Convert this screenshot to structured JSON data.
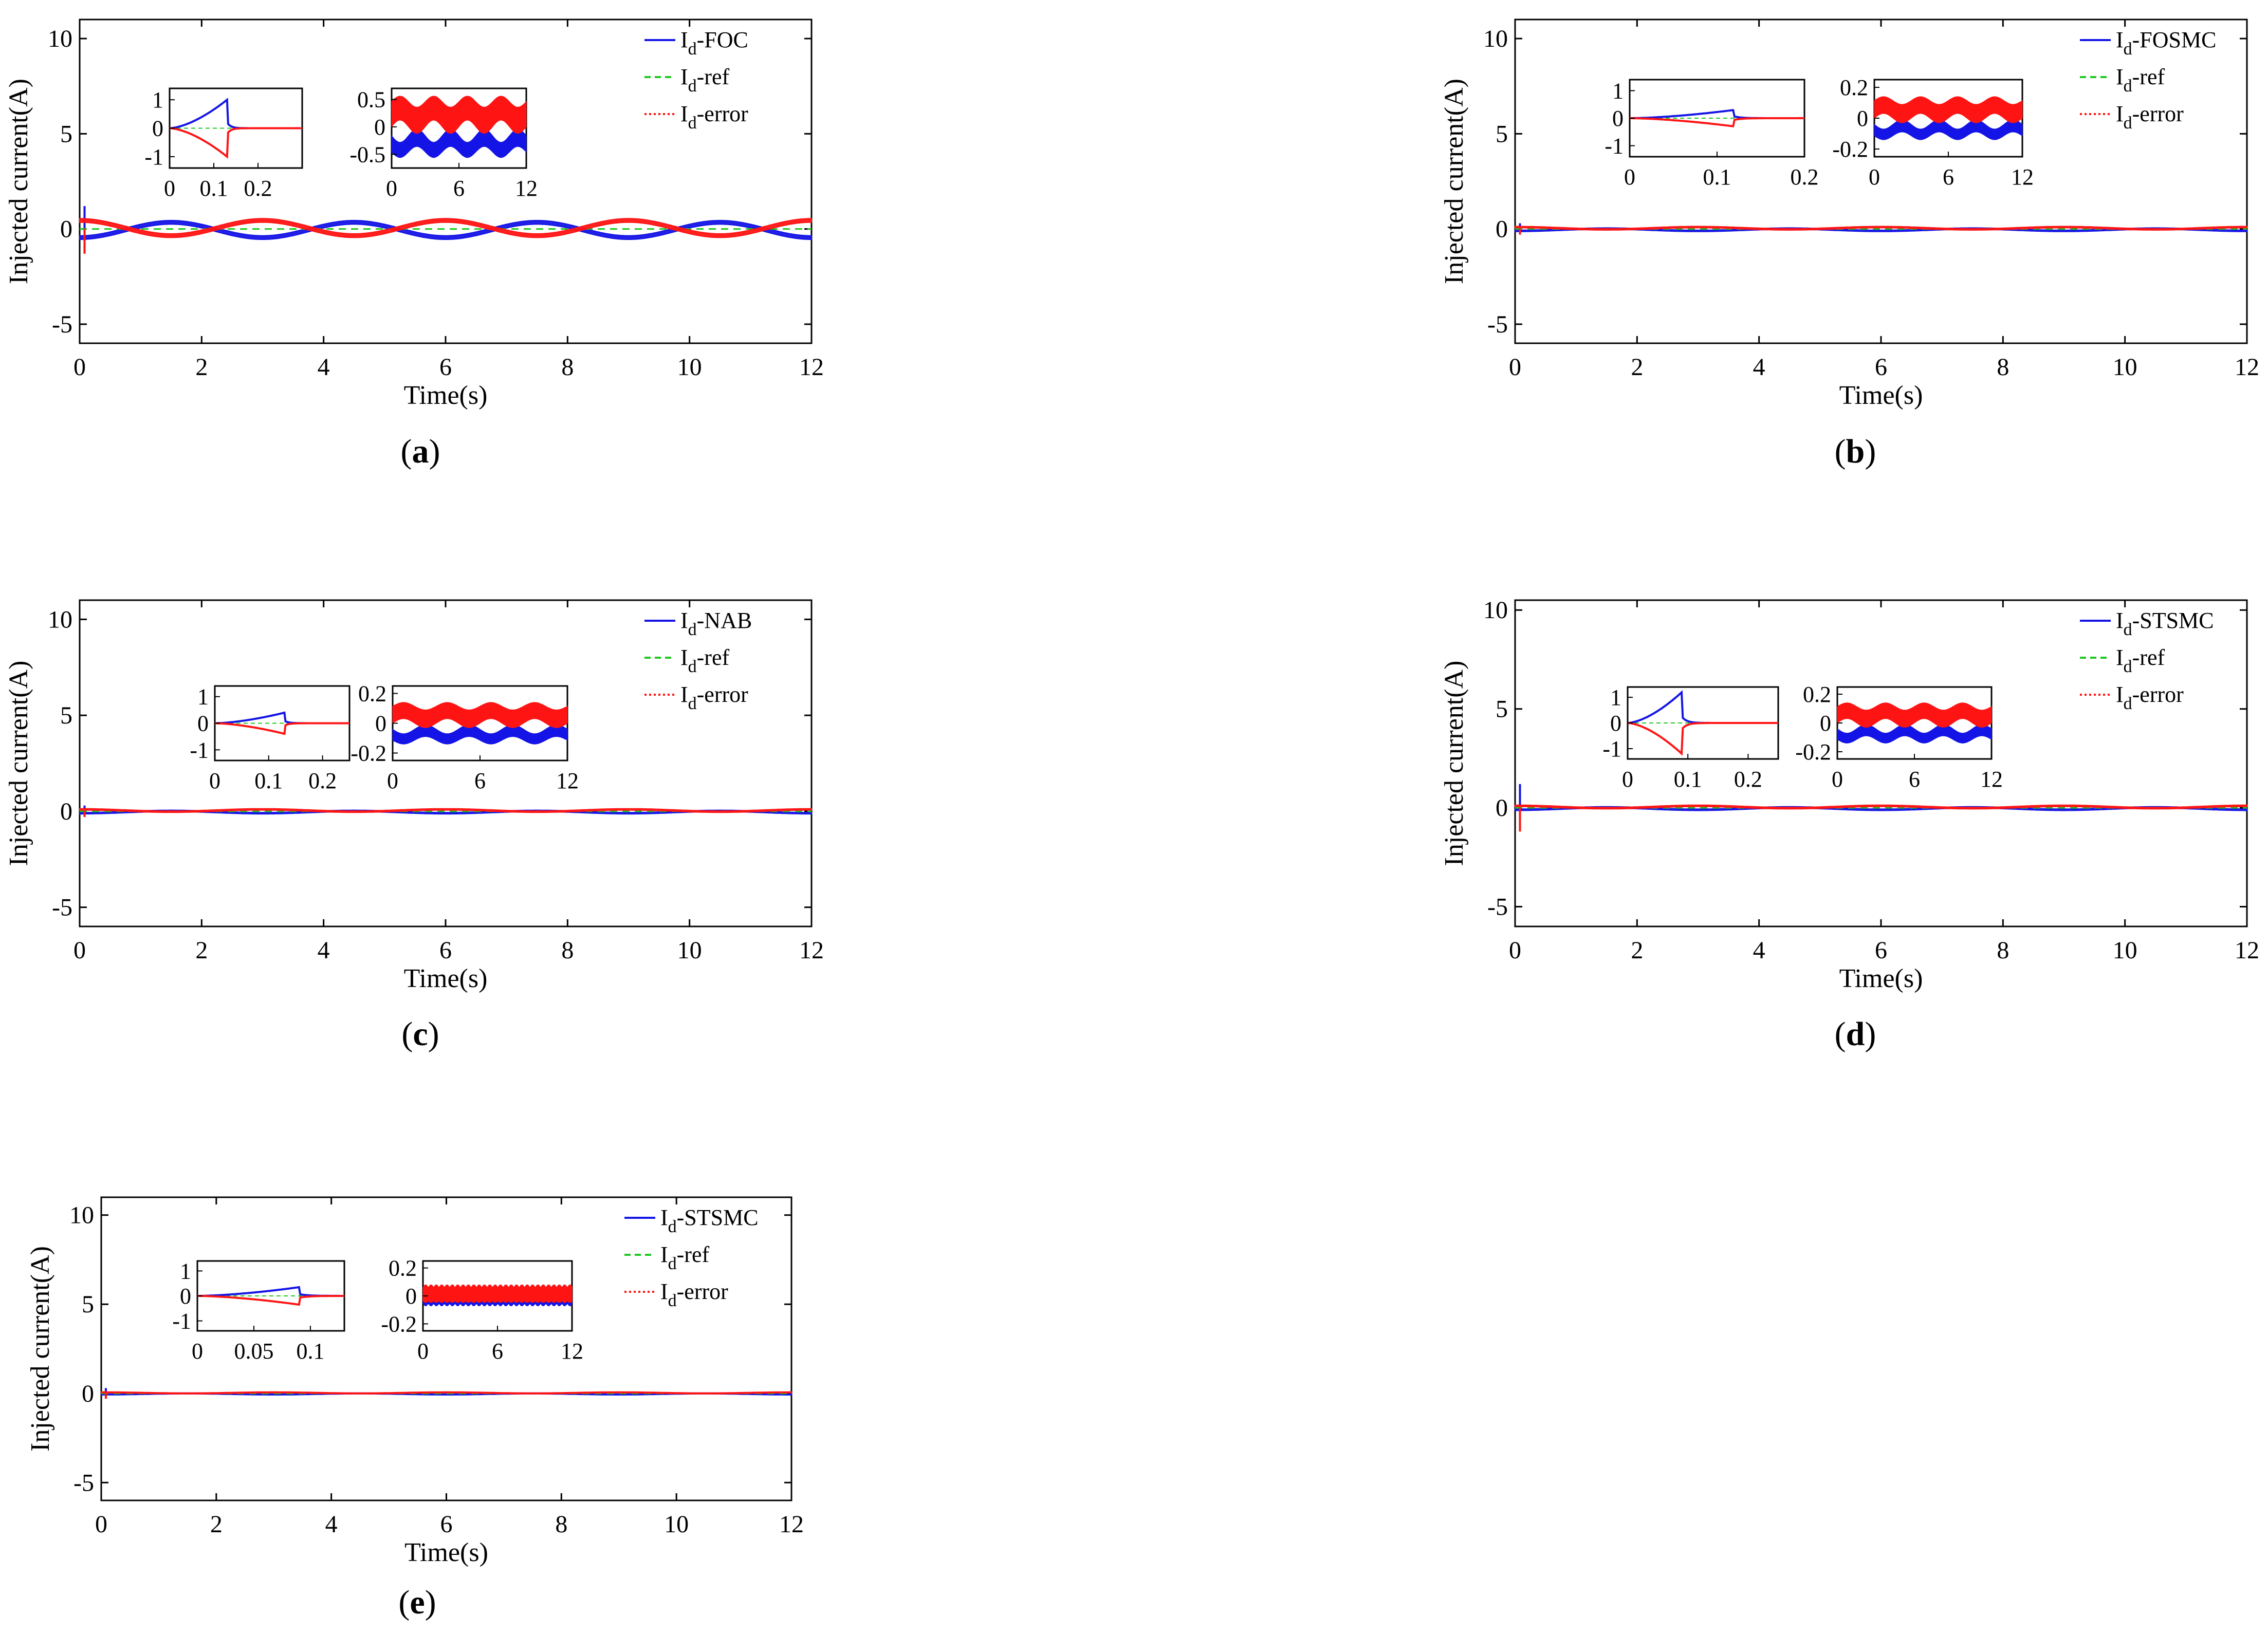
{
  "colors": {
    "foc_blue": "#1414e6",
    "ref_green": "#1ec81e",
    "error_red": "#ff1414",
    "axis": "#000000",
    "background": "#ffffff"
  },
  "chart_data": [
    {
      "id": "a",
      "label": "a",
      "type": "line",
      "xlabel": "Time(s)",
      "ylabel": "Injected current(A)",
      "xlim": [
        0,
        12
      ],
      "ylim": [
        -6,
        11
      ],
      "xticks": [
        "0",
        "2",
        "4",
        "6",
        "8",
        "10",
        "12"
      ],
      "yticks": [
        "10",
        "5",
        "0",
        "-5"
      ],
      "legend": [
        {
          "main": "I",
          "sub": "d",
          "suffix": "-FOC",
          "style": "solid",
          "color": "#1414e6"
        },
        {
          "main": "I",
          "sub": "d",
          "suffix": "-ref",
          "style": "dashed",
          "color": "#1ec81e"
        },
        {
          "main": "I",
          "sub": "d",
          "suffix": "-error",
          "style": "dotted",
          "color": "#ff1414"
        }
      ],
      "series": [
        {
          "name": "Id-FOC",
          "color": "#1414e6",
          "form": "sine",
          "amplitude": -0.4,
          "period": 3.0,
          "offset": -0.05,
          "band": 0.2,
          "spike": 1.2
        },
        {
          "name": "Id-ref",
          "color": "#1ec81e",
          "form": "const",
          "value": 0
        },
        {
          "name": "Id-error",
          "color": "#ff1414",
          "form": "sine",
          "amplitude": 0.4,
          "period": 3.0,
          "offset": 0.05,
          "band": 0.2,
          "spike": -1.3
        }
      ],
      "insets": [
        {
          "xlim": [
            0,
            0.3
          ],
          "ylim": [
            -1.4,
            1.4
          ],
          "xticks": [
            "0",
            "0.1",
            "0.2"
          ],
          "yticks": [
            "1",
            "0",
            "-1"
          ],
          "kind": "transient",
          "peak": 1.0,
          "peak_at": 0.13
        },
        {
          "xlim": [
            0,
            12
          ],
          "ylim": [
            -0.75,
            0.7
          ],
          "xticks": [
            "0",
            "6",
            "12"
          ],
          "yticks": [
            "0.5",
            "0",
            "-0.5"
          ],
          "kind": "band",
          "band_amp": 0.4,
          "band_period": 3.0
        }
      ]
    },
    {
      "id": "b",
      "label": "b",
      "type": "line",
      "xlabel": "Time(s)",
      "ylabel": "Injected current(A)",
      "xlim": [
        0,
        12
      ],
      "ylim": [
        -6,
        11
      ],
      "xticks": [
        "0",
        "2",
        "4",
        "6",
        "8",
        "10",
        "12"
      ],
      "yticks": [
        "10",
        "5",
        "0",
        "-5"
      ],
      "legend": [
        {
          "main": "I",
          "sub": "d",
          "suffix": "-FOSMC",
          "style": "solid",
          "color": "#1414e6"
        },
        {
          "main": "I",
          "sub": "d",
          "suffix": "-ref",
          "style": "dashed",
          "color": "#1ec81e"
        },
        {
          "main": "I",
          "sub": "d",
          "suffix": "-error",
          "style": "dotted",
          "color": "#ff1414"
        }
      ],
      "series": [
        {
          "name": "Id-FOSMC",
          "color": "#1414e6",
          "form": "sine",
          "amplitude": -0.06,
          "period": 3.0,
          "offset": -0.04,
          "band": 0.08,
          "spike": 0.3
        },
        {
          "name": "Id-ref",
          "color": "#1ec81e",
          "form": "const",
          "value": 0
        },
        {
          "name": "Id-error",
          "color": "#ff1414",
          "form": "sine",
          "amplitude": 0.06,
          "period": 3.0,
          "offset": 0.04,
          "band": 0.08,
          "spike": -0.3
        }
      ],
      "insets": [
        {
          "xlim": [
            0,
            0.2
          ],
          "ylim": [
            -1.4,
            1.4
          ],
          "xticks": [
            "0",
            "0.1",
            "0.2"
          ],
          "yticks": [
            "1",
            "0",
            "-1"
          ],
          "kind": "transient",
          "peak": 0.3,
          "peak_at": 0.12
        },
        {
          "xlim": [
            0,
            12
          ],
          "ylim": [
            -0.25,
            0.25
          ],
          "xticks": [
            "0",
            "6",
            "12"
          ],
          "yticks": [
            "0.2",
            "0",
            "-0.2"
          ],
          "kind": "band",
          "band_amp": 0.1,
          "band_period": 3.0
        }
      ]
    },
    {
      "id": "c",
      "label": "c",
      "type": "line",
      "xlabel": "Time(s)",
      "ylabel": "Injected current(A)",
      "xlim": [
        0,
        12
      ],
      "ylim": [
        -6,
        11
      ],
      "xticks": [
        "0",
        "2",
        "4",
        "6",
        "8",
        "10",
        "12"
      ],
      "yticks": [
        "10",
        "5",
        "0",
        "-5"
      ],
      "legend": [
        {
          "main": "I",
          "sub": "d",
          "suffix": "-NAB",
          "style": "solid",
          "color": "#1414e6"
        },
        {
          "main": "I",
          "sub": "d",
          "suffix": "-ref",
          "style": "dashed",
          "color": "#1ec81e"
        },
        {
          "main": "I",
          "sub": "d",
          "suffix": "-error",
          "style": "dotted",
          "color": "#ff1414"
        }
      ],
      "series": [
        {
          "name": "Id-NAB",
          "color": "#1414e6",
          "form": "sine",
          "amplitude": -0.06,
          "period": 3.0,
          "offset": -0.04,
          "band": 0.08,
          "spike": 0.3
        },
        {
          "name": "Id-ref",
          "color": "#1ec81e",
          "form": "const",
          "value": 0
        },
        {
          "name": "Id-error",
          "color": "#ff1414",
          "form": "sine",
          "amplitude": 0.06,
          "period": 3.0,
          "offset": 0.04,
          "band": 0.08,
          "spike": -0.3
        }
      ],
      "insets": [
        {
          "xlim": [
            0,
            0.25
          ],
          "ylim": [
            -1.4,
            1.4
          ],
          "xticks": [
            "0",
            "0.1",
            "0.2"
          ],
          "yticks": [
            "1",
            "0",
            "-1"
          ],
          "kind": "transient",
          "peak": 0.4,
          "peak_at": 0.13
        },
        {
          "xlim": [
            0,
            12
          ],
          "ylim": [
            -0.25,
            0.25
          ],
          "xticks": [
            "0",
            "6",
            "12"
          ],
          "yticks": [
            "0.2",
            "0",
            "-0.2"
          ],
          "kind": "band",
          "band_amp": 0.1,
          "band_period": 3.0
        }
      ]
    },
    {
      "id": "d",
      "label": "d",
      "type": "line",
      "xlabel": "Time(s)",
      "ylabel": "Injected current(A)",
      "xlim": [
        0,
        12
      ],
      "ylim": [
        -6,
        10.5
      ],
      "xticks": [
        "0",
        "2",
        "4",
        "6",
        "8",
        "10",
        "12"
      ],
      "yticks": [
        "10",
        "5",
        "0",
        "-5"
      ],
      "legend": [
        {
          "main": "I",
          "sub": "d",
          "suffix": "-STSMC",
          "style": "solid",
          "color": "#1414e6"
        },
        {
          "main": "I",
          "sub": "d",
          "suffix": "-ref",
          "style": "dashed",
          "color": "#1ec81e"
        },
        {
          "main": "I",
          "sub": "d",
          "suffix": "-error",
          "style": "dotted",
          "color": "#ff1414"
        }
      ],
      "series": [
        {
          "name": "Id-STSMC",
          "color": "#1414e6",
          "form": "sine",
          "amplitude": -0.06,
          "period": 3.0,
          "offset": -0.04,
          "band": 0.08,
          "spike": 1.2
        },
        {
          "name": "Id-ref",
          "color": "#1ec81e",
          "form": "const",
          "value": 0
        },
        {
          "name": "Id-error",
          "color": "#ff1414",
          "form": "sine",
          "amplitude": 0.06,
          "period": 3.0,
          "offset": 0.04,
          "band": 0.08,
          "spike": -1.2
        }
      ],
      "insets": [
        {
          "xlim": [
            0,
            0.25
          ],
          "ylim": [
            -1.4,
            1.4
          ],
          "xticks": [
            "0",
            "0.1",
            "0.2"
          ],
          "yticks": [
            "1",
            "0",
            "-1"
          ],
          "kind": "transient",
          "peak": 1.2,
          "peak_at": 0.09
        },
        {
          "xlim": [
            0,
            12
          ],
          "ylim": [
            -0.25,
            0.25
          ],
          "xticks": [
            "0",
            "6",
            "12"
          ],
          "yticks": [
            "0.2",
            "0",
            "-0.2"
          ],
          "kind": "band",
          "band_amp": 0.1,
          "band_period": 3.0
        }
      ]
    },
    {
      "id": "e",
      "label": "e",
      "type": "line",
      "xlabel": "Time(s)",
      "ylabel": "Injected current(A)",
      "xlim": [
        0,
        12
      ],
      "ylim": [
        -6,
        11
      ],
      "xticks": [
        "0",
        "2",
        "4",
        "6",
        "8",
        "10",
        "12"
      ],
      "yticks": [
        "10",
        "5",
        "0",
        "-5"
      ],
      "legend": [
        {
          "main": "I",
          "sub": "d",
          "suffix": "-STSMC",
          "style": "solid",
          "color": "#1414e6"
        },
        {
          "main": "I",
          "sub": "d",
          "suffix": "-ref",
          "style": "dashed",
          "color": "#1ec81e"
        },
        {
          "main": "I",
          "sub": "d",
          "suffix": "-error",
          "style": "dotted",
          "color": "#ff1414"
        }
      ],
      "series": [
        {
          "name": "Id-STSMC",
          "color": "#1414e6",
          "form": "sine",
          "amplitude": -0.03,
          "period": 3.0,
          "offset": -0.03,
          "band": 0.06,
          "spike": 0.3
        },
        {
          "name": "Id-ref",
          "color": "#1ec81e",
          "form": "const",
          "value": 0
        },
        {
          "name": "Id-error",
          "color": "#ff1414",
          "form": "sine",
          "amplitude": 0.03,
          "period": 3.0,
          "offset": 0.03,
          "band": 0.06,
          "spike": -0.3
        }
      ],
      "insets": [
        {
          "xlim": [
            0,
            0.13
          ],
          "ylim": [
            -1.4,
            1.4
          ],
          "xticks": [
            "0",
            "0.05",
            "0.1"
          ],
          "yticks": [
            "1",
            "0",
            "-1"
          ],
          "kind": "transient",
          "peak": 0.35,
          "peak_at": 0.09
        },
        {
          "xlim": [
            0,
            12
          ],
          "ylim": [
            -0.25,
            0.25
          ],
          "xticks": [
            "0",
            "6",
            "12"
          ],
          "yticks": [
            "0.2",
            "0",
            "-0.2"
          ],
          "kind": "noise",
          "band_amp": 0.08,
          "band_period": 3.0
        }
      ]
    }
  ]
}
